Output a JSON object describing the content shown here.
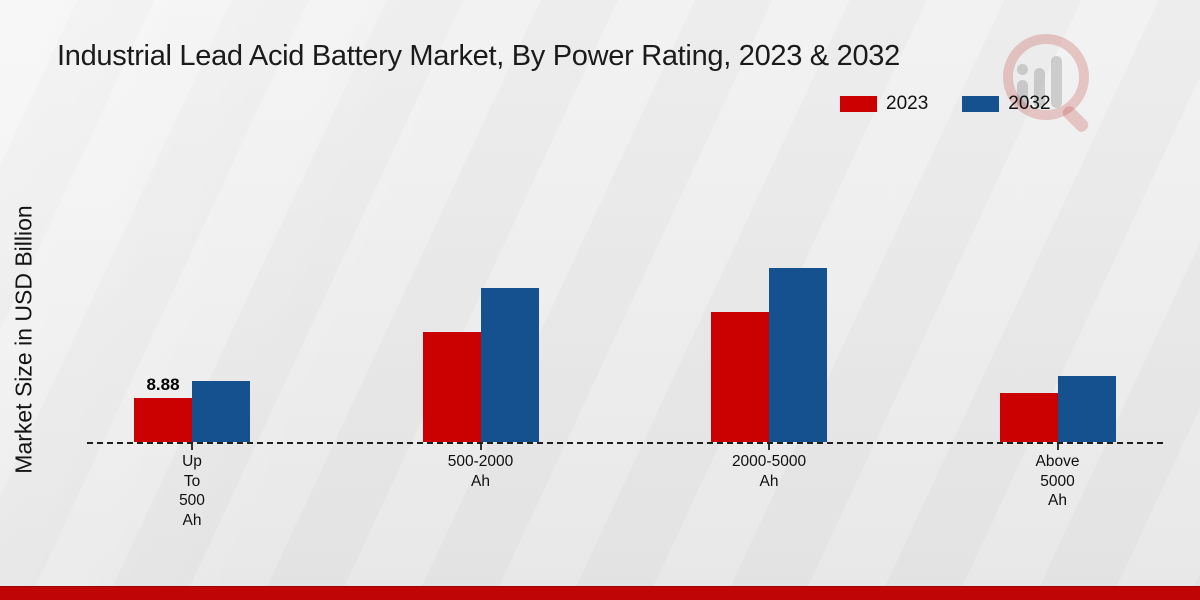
{
  "header": {
    "title": "Industrial Lead Acid Battery Market, By Power Rating, 2023 & 2032"
  },
  "y_axis": {
    "label": "Market Size in USD Billion"
  },
  "legend": {
    "position": "top-right",
    "items": [
      {
        "label": "2023",
        "color": "#cb0101"
      },
      {
        "label": "2032",
        "color": "#14518e"
      }
    ]
  },
  "chart_data": {
    "type": "bar",
    "title": "Industrial Lead Acid Battery Market, By Power Rating, 2023 & 2032",
    "xlabel": "",
    "ylabel": "Market Size in USD Billion",
    "categories": [
      "Up To 500 Ah",
      "500-2000 Ah",
      "2000-5000 Ah",
      "Above 5000 Ah"
    ],
    "category_label_lines": [
      [
        "Up",
        "To",
        "500",
        "Ah"
      ],
      [
        "500-2000",
        "Ah"
      ],
      [
        "2000-5000",
        "Ah"
      ],
      [
        "Above",
        "5000",
        "Ah"
      ]
    ],
    "series": [
      {
        "name": "2023",
        "color": "#cb0101",
        "values": [
          8.88,
          22.2,
          26.3,
          9.9
        ]
      },
      {
        "name": "2032",
        "color": "#14518e",
        "values": [
          12.3,
          31.1,
          35.2,
          13.3
        ]
      }
    ],
    "data_labels": [
      {
        "series": "2023",
        "category": "Up To 500 Ah",
        "text": "8.88"
      }
    ],
    "ylim": [
      0,
      40
    ],
    "grid": false,
    "y_axis_ticks_visible": false,
    "baseline_style": "dashed",
    "legend_position": "top-right"
  },
  "watermark": {
    "name": "market-research-future-logo"
  },
  "footer": {
    "accent_color": "#bf0505"
  }
}
